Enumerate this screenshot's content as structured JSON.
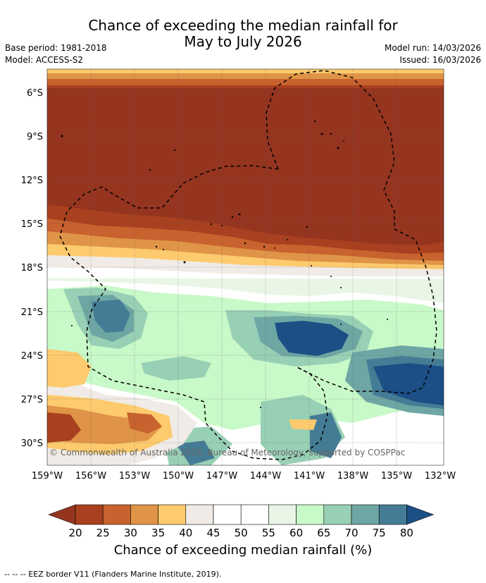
{
  "title_line1": "Chance of exceeding the median rainfall for",
  "title_line2": "May to July 2026",
  "base_period": "Base period: 1981-2018",
  "model": "Model: ACCESS-S2",
  "model_run": "Model run: 14/03/2026",
  "issued": "Issued: 16/03/2026",
  "lat_labels": [
    "6°S",
    "9°S",
    "12°S",
    "15°S",
    "18°S",
    "21°S",
    "24°S",
    "27°S",
    "30°S"
  ],
  "lon_labels": [
    "159°W",
    "156°W",
    "153°W",
    "150°W",
    "147°W",
    "144°W",
    "141°W",
    "138°W",
    "135°W",
    "132°W"
  ],
  "copyright": "© Commonwealth of Australia 2026, Bureau of Meteorology, supported by COSPPac",
  "colorbar": {
    "ticks": [
      "20",
      "25",
      "30",
      "35",
      "40",
      "45",
      "50",
      "55",
      "60",
      "65",
      "70",
      "75",
      "80"
    ],
    "colors": [
      "#a9401f",
      "#c8622e",
      "#df9447",
      "#fdca6e",
      "#f0ebe6",
      "#ffffff",
      "#ffffff",
      "#e9f6e6",
      "#c8f9c8",
      "#98d0b5",
      "#6ea6a4",
      "#457c95"
    ],
    "under_color": "#953520",
    "over_color": "#1b4f85",
    "label": "Chance of exceeding median rainfall (%)"
  },
  "footer": "--  --  -- EEZ border V11 (Flanders Marine Institute, 2019)."
}
